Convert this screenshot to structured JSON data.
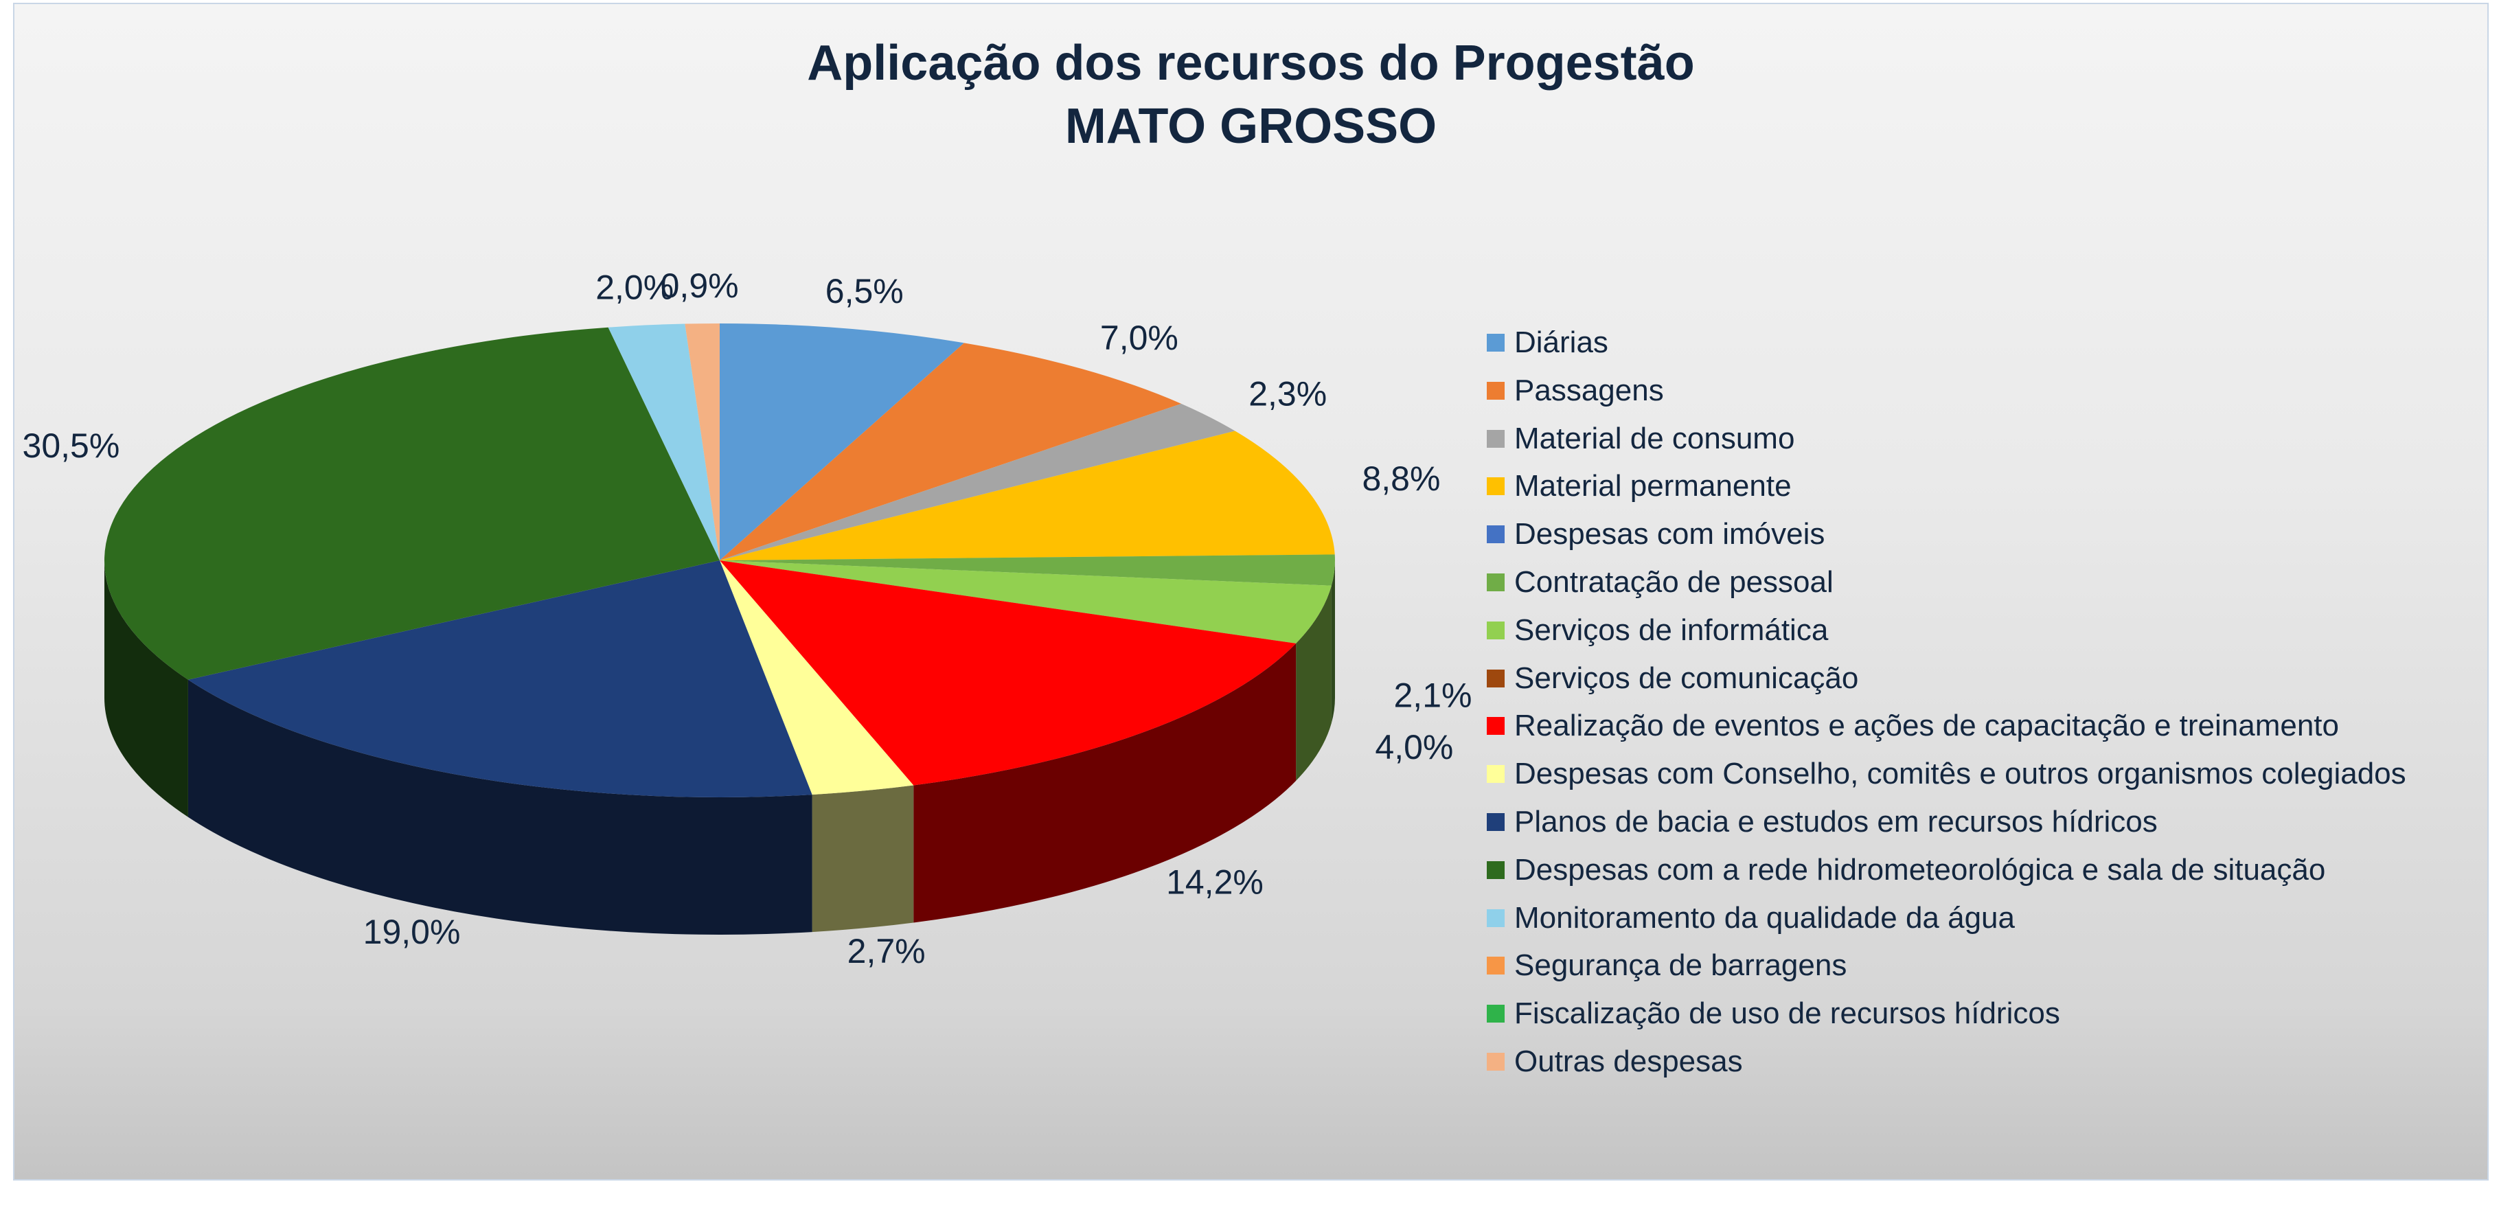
{
  "chart_data": {
    "type": "pie",
    "title": "Aplicação dos recursos do Progestão",
    "subtitle": "MATO GROSSO",
    "series": [
      {
        "name": "Diárias",
        "value": 6.5,
        "label": "6,5%",
        "color": "#5b9bd5"
      },
      {
        "name": "Passagens",
        "value": 7.0,
        "label": "7,0%",
        "color": "#ed7d31"
      },
      {
        "name": "Material de consumo",
        "value": 2.3,
        "label": "2,3%",
        "color": "#a5a5a5"
      },
      {
        "name": "Material permanente",
        "value": 8.8,
        "label": "8,8%",
        "color": "#ffc000"
      },
      {
        "name": "Despesas com imóveis",
        "value": 0.0,
        "label": "",
        "color": "#4472c4"
      },
      {
        "name": "Contratação de pessoal",
        "value": 2.1,
        "label": "2,1%",
        "color": "#70ad47"
      },
      {
        "name": "Serviços de informática",
        "value": 4.0,
        "label": "4,0%",
        "color": "#92d050"
      },
      {
        "name": "Serviços de comunicação",
        "value": 0.0,
        "label": "",
        "color": "#9e480e"
      },
      {
        "name": "Realização de eventos e ações de capacitação e treinamento",
        "value": 14.2,
        "label": "14,2%",
        "color": "#ff0000"
      },
      {
        "name": "Despesas com Conselho, comitês e outros organismos colegiados",
        "value": 2.7,
        "label": "2,7%",
        "color": "#ffff99"
      },
      {
        "name": "Planos de bacia e estudos em recursos hídricos",
        "value": 19.0,
        "label": "19,0%",
        "color": "#1f3f7a"
      },
      {
        "name": "Despesas com a rede hidrometeorológica e sala de situação",
        "value": 30.5,
        "label": "30,5%",
        "color": "#2e6b1e"
      },
      {
        "name": "Monitoramento da qualidade da água",
        "value": 2.0,
        "label": "2,0%",
        "color": "#8fd0ea"
      },
      {
        "name": "Segurança de barragens",
        "value": 0.0,
        "label": "",
        "color": "#f79646"
      },
      {
        "name": "Fiscalização de uso de recursos hídricos",
        "value": 0.0,
        "label": "",
        "color": "#2fb34a"
      },
      {
        "name": "Outras despesas",
        "value": 0.9,
        "label": "0,9%",
        "color": "#f4b183"
      }
    ],
    "legend_position": "right"
  }
}
